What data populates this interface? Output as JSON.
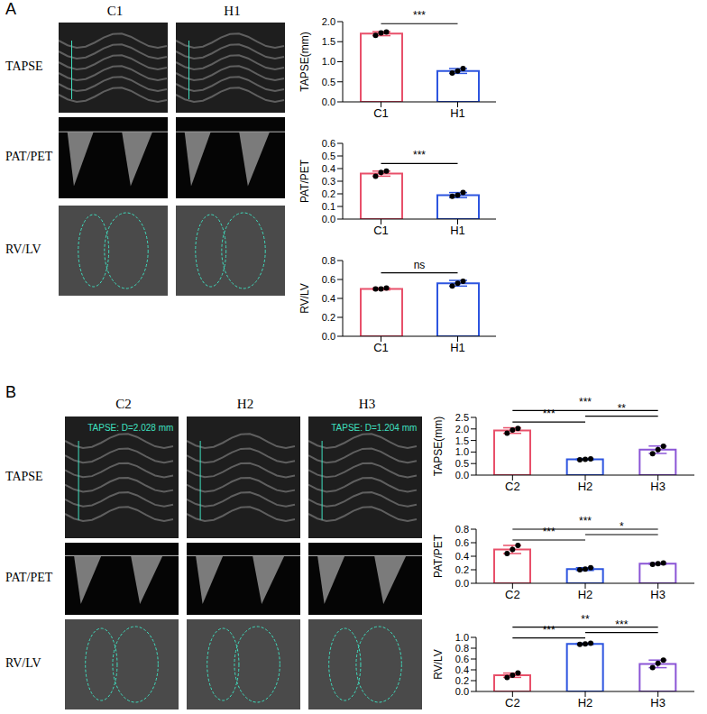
{
  "panels": [
    {
      "letter": "A",
      "columns": [
        "C1",
        "H1"
      ],
      "rows": [
        "TAPSE",
        "PAT/PET",
        "RV/LV"
      ]
    },
    {
      "letter": "B",
      "columns": [
        "C2",
        "H2",
        "H3"
      ],
      "rows": [
        "TAPSE",
        "PAT/PET",
        "RV/LV"
      ],
      "image_labels": [
        {
          "column": "C2",
          "row": "TAPSE",
          "text": "TAPSE: D=2.028 mm"
        },
        {
          "column": "H3",
          "row": "TAPSE",
          "text": "TAPSE: D=1.204 mm"
        }
      ]
    }
  ],
  "chart_data": [
    {
      "type": "bar",
      "panel": "A",
      "y_label": "TAPSE(mm)",
      "categories": [
        "C1",
        "H1"
      ],
      "values": [
        1.7,
        0.77
      ],
      "errors": [
        0.05,
        0.06
      ],
      "points": [
        [
          1.66,
          1.72,
          1.74
        ],
        [
          0.72,
          0.77,
          0.83
        ]
      ],
      "colors": [
        "#e8506a",
        "#2d55e0"
      ],
      "ylim": [
        0,
        2.0
      ],
      "yticks": [
        {
          "value": 0,
          "label": "0.0"
        },
        0.5,
        {
          "value": 1,
          "label": "1.0"
        },
        1.5,
        {
          "value": 2,
          "label": "2.0"
        }
      ],
      "comparisons": [
        {
          "from": "C1",
          "to": "H1",
          "label": "***"
        }
      ]
    },
    {
      "type": "bar",
      "panel": "A",
      "y_label": "PAT/PET",
      "categories": [
        "C1",
        "H1"
      ],
      "values": [
        0.36,
        0.19
      ],
      "errors": [
        0.02,
        0.02
      ],
      "points": [
        [
          0.34,
          0.37,
          0.38
        ],
        [
          0.18,
          0.19,
          0.21
        ]
      ],
      "colors": [
        "#e8506a",
        "#2d55e0"
      ],
      "ylim": [
        0,
        0.6
      ],
      "yticks": [
        {
          "value": 0,
          "label": "0.0"
        },
        0.1,
        0.2,
        0.3,
        0.4,
        0.5,
        0.6
      ],
      "comparisons": [
        {
          "from": "C1",
          "to": "H1",
          "label": "***"
        }
      ]
    },
    {
      "type": "bar",
      "panel": "A",
      "y_label": "RV/LV",
      "categories": [
        "C1",
        "H1"
      ],
      "values": [
        0.5,
        0.56
      ],
      "errors": [
        0.01,
        0.03
      ],
      "points": [
        [
          0.5,
          0.5,
          0.51
        ],
        [
          0.53,
          0.56,
          0.58
        ]
      ],
      "colors": [
        "#e8506a",
        "#2d55e0"
      ],
      "ylim": [
        0,
        0.8
      ],
      "yticks": [
        {
          "value": 0,
          "label": "0.0"
        },
        0.2,
        0.4,
        0.6,
        0.8
      ],
      "comparisons": [
        {
          "from": "C1",
          "to": "H1",
          "label": "ns"
        }
      ]
    },
    {
      "type": "bar",
      "panel": "B",
      "y_label": "TAPSE(mm)",
      "categories": [
        "C2",
        "H2",
        "H3"
      ],
      "values": [
        1.93,
        0.68,
        1.1
      ],
      "errors": [
        0.12,
        0.02,
        0.16
      ],
      "points": [
        [
          1.82,
          1.95,
          2.02
        ],
        [
          0.66,
          0.68,
          0.7
        ],
        [
          0.93,
          1.1,
          1.25
        ]
      ],
      "colors": [
        "#e8506a",
        "#2d55e0",
        "#8b55d6"
      ],
      "ylim": [
        0,
        2.5
      ],
      "yticks": [
        {
          "value": 0,
          "label": "0.0"
        },
        0.5,
        {
          "value": 1,
          "label": "1.0"
        },
        1.5,
        {
          "value": 2,
          "label": "2.0"
        },
        2.5
      ],
      "comparisons": [
        {
          "from": "C2",
          "to": "H2",
          "label": "***"
        },
        {
          "from": "C2",
          "to": "H3",
          "label": "***"
        },
        {
          "from": "H2",
          "to": "H3",
          "label": "**"
        }
      ]
    },
    {
      "type": "bar",
      "panel": "B",
      "y_label": "PAT/PET",
      "categories": [
        "C2",
        "H2",
        "H3"
      ],
      "values": [
        0.5,
        0.21,
        0.29
      ],
      "errors": [
        0.06,
        0.02,
        0.01
      ],
      "points": [
        [
          0.44,
          0.5,
          0.56
        ],
        [
          0.2,
          0.21,
          0.23
        ],
        [
          0.28,
          0.29,
          0.3
        ]
      ],
      "colors": [
        "#e8506a",
        "#2d55e0",
        "#8b55d6"
      ],
      "ylim": [
        0,
        0.8
      ],
      "yticks": [
        {
          "value": 0,
          "label": "0.0"
        },
        0.2,
        0.4,
        0.6,
        0.8
      ],
      "comparisons": [
        {
          "from": "C2",
          "to": "H2",
          "label": "***"
        },
        {
          "from": "C2",
          "to": "H3",
          "label": "***"
        },
        {
          "from": "H2",
          "to": "H3",
          "label": "*"
        }
      ]
    },
    {
      "type": "bar",
      "panel": "B",
      "y_label": "RV/LV",
      "categories": [
        "C2",
        "H2",
        "H3"
      ],
      "values": [
        0.3,
        0.88,
        0.51
      ],
      "errors": [
        0.04,
        0.01,
        0.07
      ],
      "points": [
        [
          0.26,
          0.3,
          0.34
        ],
        [
          0.87,
          0.88,
          0.89
        ],
        [
          0.44,
          0.52,
          0.58
        ]
      ],
      "colors": [
        "#e8506a",
        "#2d55e0",
        "#8b55d6"
      ],
      "ylim": [
        0,
        1.0
      ],
      "yticks": [
        {
          "value": 0,
          "label": "0.0"
        },
        0.2,
        0.4,
        0.6,
        0.8,
        {
          "value": 1,
          "label": "1.0"
        }
      ],
      "comparisons": [
        {
          "from": "C2",
          "to": "H2",
          "label": "***"
        },
        {
          "from": "C2",
          "to": "H3",
          "label": "**"
        },
        {
          "from": "H2",
          "to": "H3",
          "label": "***"
        }
      ]
    }
  ]
}
